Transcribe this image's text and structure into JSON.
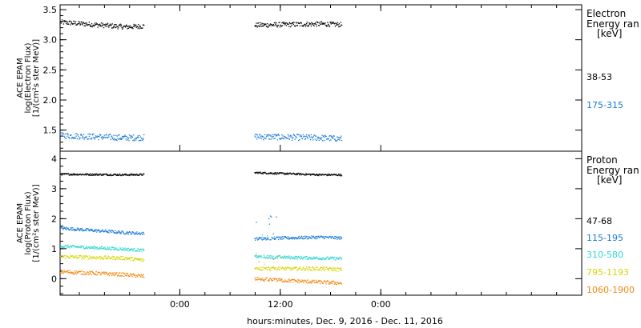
{
  "x_axis": {
    "label": "hours:minutes, Dec.  9, 2016 - Dec. 11, 2016",
    "range_hours": [
      -14.3,
      48.0
    ],
    "ticks": [
      {
        "t": 0,
        "label": "0:00"
      },
      {
        "t": 12,
        "label": "12:00"
      },
      {
        "t": 24,
        "label": "0:00"
      }
    ]
  },
  "chart_data": [
    {
      "type": "scatter",
      "ylabel": [
        "ACE EPAM",
        "log(Electron Flux)",
        "[1/(cm²s ster MeV)]"
      ],
      "ylim": [
        1.15,
        3.58
      ],
      "yticks": [
        1.5,
        2.0,
        2.5,
        3.0,
        3.5
      ],
      "legend": {
        "title": [
          "Electron",
          "Energy ran",
          "[keV]"
        ],
        "placement": "right"
      },
      "data_segments_hours": [
        [
          -14.3,
          -4.3
        ],
        [
          8.9,
          19.3
        ]
      ],
      "series": [
        {
          "name": "38-53",
          "color": "#000000",
          "base": [
            3.3,
            3.22,
            3.27,
            3.25,
            3.27,
            3.23
          ],
          "noise": 0.04
        },
        {
          "name": "175-315",
          "color": "#1a7ad8",
          "base": [
            1.42,
            1.38,
            1.4,
            1.4,
            1.38,
            1.33
          ],
          "noise": 0.05
        }
      ]
    },
    {
      "type": "scatter",
      "ylabel": [
        "ACE EPAM",
        "log(Proton Flux)",
        "[1/(cm²s ster MeV)]"
      ],
      "ylim": [
        -0.55,
        4.25
      ],
      "yticks": [
        0,
        1,
        2,
        3,
        4
      ],
      "legend": {
        "title": [
          "Proton",
          "Energy ran",
          "[keV]"
        ],
        "placement": "right"
      },
      "data_segments_hours": [
        [
          -14.3,
          -4.3
        ],
        [
          8.9,
          19.3
        ]
      ],
      "series": [
        {
          "name": "47-68",
          "color": "#000000",
          "base": [
            3.5,
            3.48,
            3.5,
            3.55,
            3.48,
            3.47
          ],
          "noise": 0.03
        },
        {
          "name": "115-195",
          "color": "#1a7ad8",
          "base": [
            1.7,
            1.55,
            1.45,
            1.35,
            1.4,
            1.3
          ],
          "noise": 0.05
        },
        {
          "name": "310-580",
          "color": "#2fd6cf",
          "base": [
            1.1,
            1.0,
            0.85,
            0.75,
            0.7,
            0.65
          ],
          "noise": 0.05
        },
        {
          "name": "795-1193",
          "color": "#d6d60a",
          "base": [
            0.75,
            0.7,
            0.45,
            0.35,
            0.35,
            0.25
          ],
          "noise": 0.06
        },
        {
          "name": "1060-1900",
          "color": "#f28a12",
          "base": [
            0.25,
            0.15,
            -0.05,
            0.0,
            -0.1,
            -0.2
          ],
          "noise": 0.06
        }
      ]
    }
  ]
}
